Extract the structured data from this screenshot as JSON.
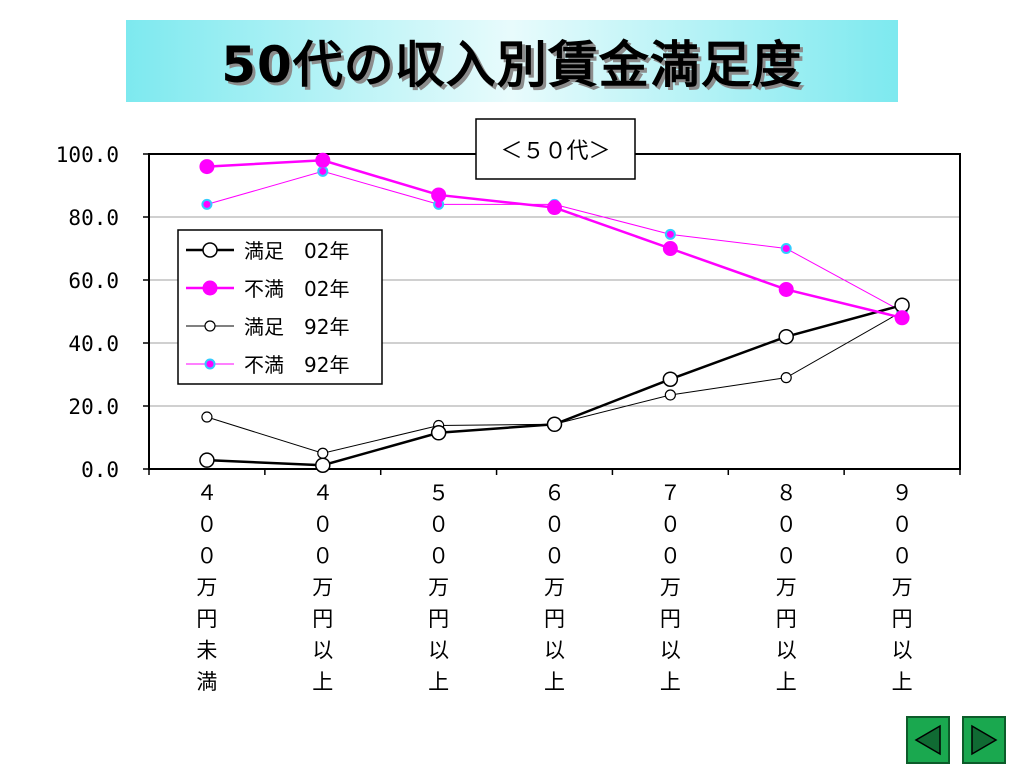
{
  "page": {
    "title": "50代の収入別賃金満足度",
    "nav": {
      "prev_icon": "triangle-left-icon",
      "next_icon": "triangle-right-icon",
      "color": "#1aa84f"
    }
  },
  "chart_data": {
    "type": "line",
    "subtitle": "＜５０代＞",
    "categories": [
      "４００万円未満",
      "４００万円以上",
      "５００万円以上",
      "６００万円以上",
      "７００万円以上",
      "８００万円以上",
      "９００万円以上"
    ],
    "y_tick_labels": [
      "0.0",
      "20.0",
      "40.0",
      "60.0",
      "80.0",
      "100.0"
    ],
    "ylim": [
      0,
      100
    ],
    "grid": true,
    "legend_position": "upper-left inside plot",
    "series": [
      {
        "name": "満足　02年",
        "values": [
          2.8,
          1.2,
          11.5,
          14.2,
          28.5,
          42.0,
          52.0
        ],
        "color": "#000000",
        "marker": "open-circle-large",
        "line_width": 2.5
      },
      {
        "name": "不満　02年",
        "values": [
          96.0,
          98.0,
          87.0,
          83.0,
          70.0,
          57.0,
          48.0
        ],
        "color": "#ff00ff",
        "marker": "filled-circle-large",
        "line_width": 2.5
      },
      {
        "name": "満足　92年",
        "values": [
          16.5,
          5.0,
          13.8,
          14.2,
          23.5,
          29.0,
          50.0
        ],
        "color": "#000000",
        "marker": "open-circle-small",
        "line_width": 1
      },
      {
        "name": "不満　92年",
        "values": [
          84.0,
          94.5,
          84.0,
          84.0,
          74.5,
          70.0,
          50.0
        ],
        "color": "#ff00ff",
        "marker": "cyan-dot-small",
        "line_width": 1
      }
    ]
  }
}
